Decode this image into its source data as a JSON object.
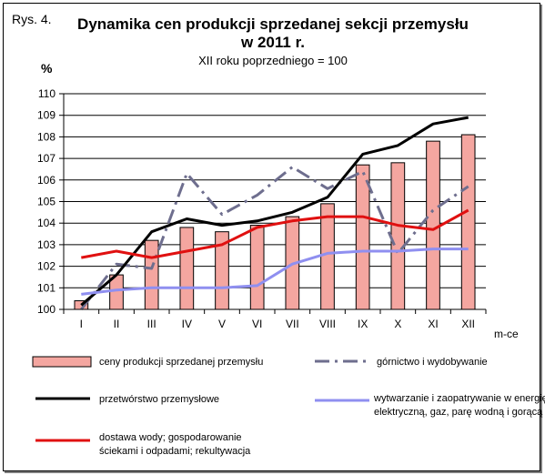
{
  "figure_label": "Rys. 4.",
  "chart_data": {
    "type": "bar",
    "title": "Dynamika cen produkcji sprzedanej sekcji przemysłu",
    "title_line2": "w 2011 r.",
    "subtitle": "XII roku poprzedniego = 100",
    "ylabel": "%",
    "xlabel": "m-ce",
    "ylim": [
      100,
      110
    ],
    "yticks": [
      "100",
      "101",
      "102",
      "103",
      "104",
      "105",
      "106",
      "107",
      "108",
      "109",
      "110"
    ],
    "categories": [
      "I",
      "II",
      "III",
      "IV",
      "V",
      "VI",
      "VII",
      "VIII",
      "IX",
      "X",
      "XI",
      "XII"
    ],
    "grid": true,
    "legend_position": "bottom",
    "series": [
      {
        "name": "ceny produkcji sprzedanej przemysłu",
        "kind": "bar",
        "color": "#f4a6a0",
        "values": [
          100.4,
          101.6,
          103.2,
          103.8,
          103.6,
          103.9,
          104.3,
          104.9,
          106.7,
          106.8,
          107.8,
          108.1
        ]
      },
      {
        "name": "górnictwo i wydobywanie",
        "kind": "dash-dot-line",
        "color": "#6e6e8e",
        "values": [
          100.0,
          102.1,
          101.9,
          106.3,
          104.4,
          105.3,
          106.6,
          105.6,
          106.4,
          102.6,
          104.6,
          105.7
        ]
      },
      {
        "name": "przetwórstwo przemysłowe",
        "kind": "line",
        "color": "#000000",
        "values": [
          100.2,
          101.6,
          103.6,
          104.2,
          103.9,
          104.1,
          104.5,
          105.2,
          107.2,
          107.6,
          108.6,
          108.9
        ]
      },
      {
        "name_lines": [
          "wytwarzanie  i zaopatrywanie  w energię",
          "elektryczną,  gaz, parę wodną i gorącą wodę"
        ],
        "kind": "line",
        "color": "#8f8ff0",
        "values": [
          100.7,
          100.9,
          101.0,
          101.0,
          101.0,
          101.1,
          102.1,
          102.6,
          102.7,
          102.7,
          102.8,
          102.8
        ]
      },
      {
        "name_lines": [
          "dostawa wody; gospodarowanie",
          "ściekami i odpadami; rekultywacja"
        ],
        "kind": "line",
        "color": "#e01010",
        "values": [
          102.4,
          102.7,
          102.4,
          102.7,
          103.0,
          103.8,
          104.1,
          104.3,
          104.3,
          103.9,
          103.7,
          104.6
        ]
      }
    ]
  }
}
